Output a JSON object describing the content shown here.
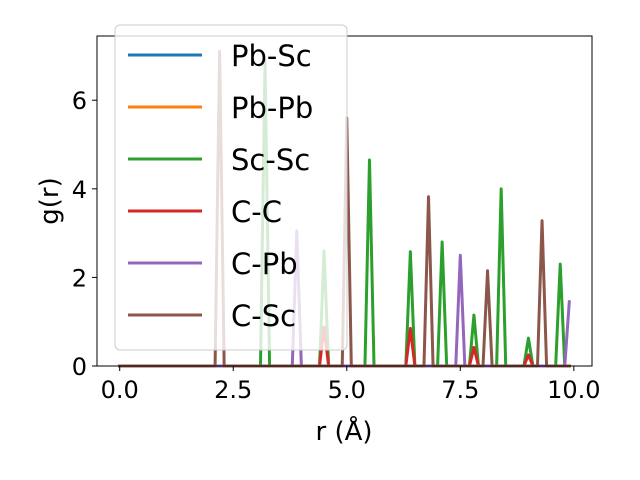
{
  "chart_data": {
    "type": "line",
    "xlabel": "r (Å)",
    "ylabel": "g(r)",
    "xlim": [
      -0.5,
      10.4
    ],
    "ylim": [
      0,
      7.45
    ],
    "xticks": [
      0.0,
      2.5,
      5.0,
      7.5,
      10.0
    ],
    "xtick_labels": [
      "0.0",
      "2.5",
      "5.0",
      "7.5",
      "10.0"
    ],
    "yticks": [
      0,
      2,
      4,
      6
    ],
    "ytick_labels": [
      "0",
      "2",
      "4",
      "6"
    ],
    "grid": false,
    "legend_position": "top-left",
    "series": [
      {
        "name": "Pb-Sc",
        "color": "#1f77b4",
        "points": [
          [
            0,
            0
          ],
          [
            9.9,
            0
          ]
        ]
      },
      {
        "name": "Pb-Pb",
        "color": "#ff7f0e",
        "points": [
          [
            0,
            0
          ],
          [
            9.9,
            0
          ]
        ]
      },
      {
        "name": "Sc-Sc",
        "color": "#2ca02c",
        "points": [
          [
            0,
            0
          ],
          [
            3.1,
            0
          ],
          [
            3.2,
            6.9
          ],
          [
            3.3,
            0
          ],
          [
            4.4,
            0
          ],
          [
            4.5,
            2.6
          ],
          [
            4.6,
            0
          ],
          [
            5.4,
            0
          ],
          [
            5.5,
            4.65
          ],
          [
            5.6,
            0
          ],
          [
            6.3,
            0
          ],
          [
            6.4,
            2.58
          ],
          [
            6.5,
            0
          ],
          [
            7.0,
            0
          ],
          [
            7.1,
            2.8
          ],
          [
            7.2,
            0
          ],
          [
            7.7,
            0
          ],
          [
            7.8,
            1.15
          ],
          [
            7.9,
            0
          ],
          [
            8.3,
            0
          ],
          [
            8.4,
            4.0
          ],
          [
            8.5,
            0
          ],
          [
            8.9,
            0
          ],
          [
            9.0,
            0.63
          ],
          [
            9.1,
            0
          ],
          [
            9.6,
            0
          ],
          [
            9.7,
            2.3
          ],
          [
            9.8,
            0
          ],
          [
            9.9,
            0
          ]
        ]
      },
      {
        "name": "C-C",
        "color": "#d62728",
        "points": [
          [
            0,
            0
          ],
          [
            4.4,
            0
          ],
          [
            4.5,
            0.88
          ],
          [
            4.6,
            0
          ],
          [
            6.3,
            0
          ],
          [
            6.4,
            0.85
          ],
          [
            6.5,
            0
          ],
          [
            7.7,
            0
          ],
          [
            7.8,
            0.42
          ],
          [
            7.9,
            0
          ],
          [
            8.9,
            0
          ],
          [
            9.0,
            0.25
          ],
          [
            9.1,
            0
          ],
          [
            9.9,
            0
          ]
        ]
      },
      {
        "name": "C-Pb",
        "color": "#9467bd",
        "points": [
          [
            0,
            0
          ],
          [
            3.8,
            0
          ],
          [
            3.9,
            3.05
          ],
          [
            4.0,
            0
          ],
          [
            7.4,
            0
          ],
          [
            7.5,
            2.5
          ],
          [
            7.6,
            0
          ],
          [
            9.8,
            0
          ],
          [
            9.9,
            1.45
          ]
        ]
      },
      {
        "name": "C-Sc",
        "color": "#8c564b",
        "points": [
          [
            0,
            0
          ],
          [
            2.1,
            0
          ],
          [
            2.2,
            7.1
          ],
          [
            2.3,
            0
          ],
          [
            4.9,
            0
          ],
          [
            5.0,
            5.6
          ],
          [
            5.1,
            0
          ],
          [
            6.7,
            0
          ],
          [
            6.8,
            3.82
          ],
          [
            6.9,
            0
          ],
          [
            8.0,
            0
          ],
          [
            8.1,
            2.15
          ],
          [
            8.2,
            0
          ],
          [
            9.2,
            0
          ],
          [
            9.3,
            3.28
          ],
          [
            9.4,
            0
          ],
          [
            9.9,
            0
          ]
        ]
      }
    ]
  }
}
